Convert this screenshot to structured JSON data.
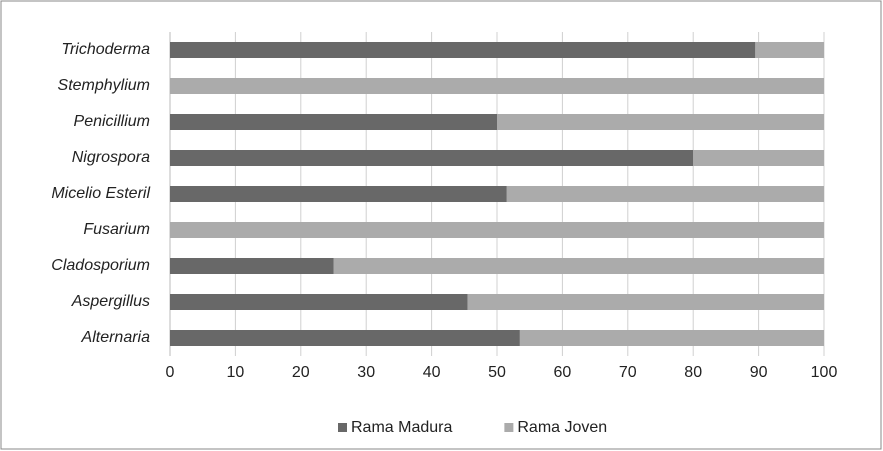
{
  "chart_data": {
    "type": "stacked-barh",
    "categories": [
      "Trichoderma",
      "Stemphylium",
      "Penicillium",
      "Nigrospora",
      "Micelio Esteril",
      "Fusarium",
      "Cladosporium",
      "Aspergillus",
      "Alternaria"
    ],
    "series": [
      {
        "name": "Rama Madura",
        "color": "#686868",
        "values": [
          89.5,
          0,
          50,
          80,
          51.5,
          0,
          25,
          45.5,
          53.5
        ]
      },
      {
        "name": "Rama Joven",
        "color": "#ababab",
        "values": [
          10.5,
          100,
          50,
          20,
          48.5,
          100,
          75,
          54.5,
          46.5
        ]
      }
    ],
    "xlim": [
      0,
      100
    ],
    "xticks": [
      0,
      10,
      20,
      30,
      40,
      50,
      60,
      70,
      80,
      90,
      100
    ],
    "grid": true,
    "legend": "bottom"
  }
}
